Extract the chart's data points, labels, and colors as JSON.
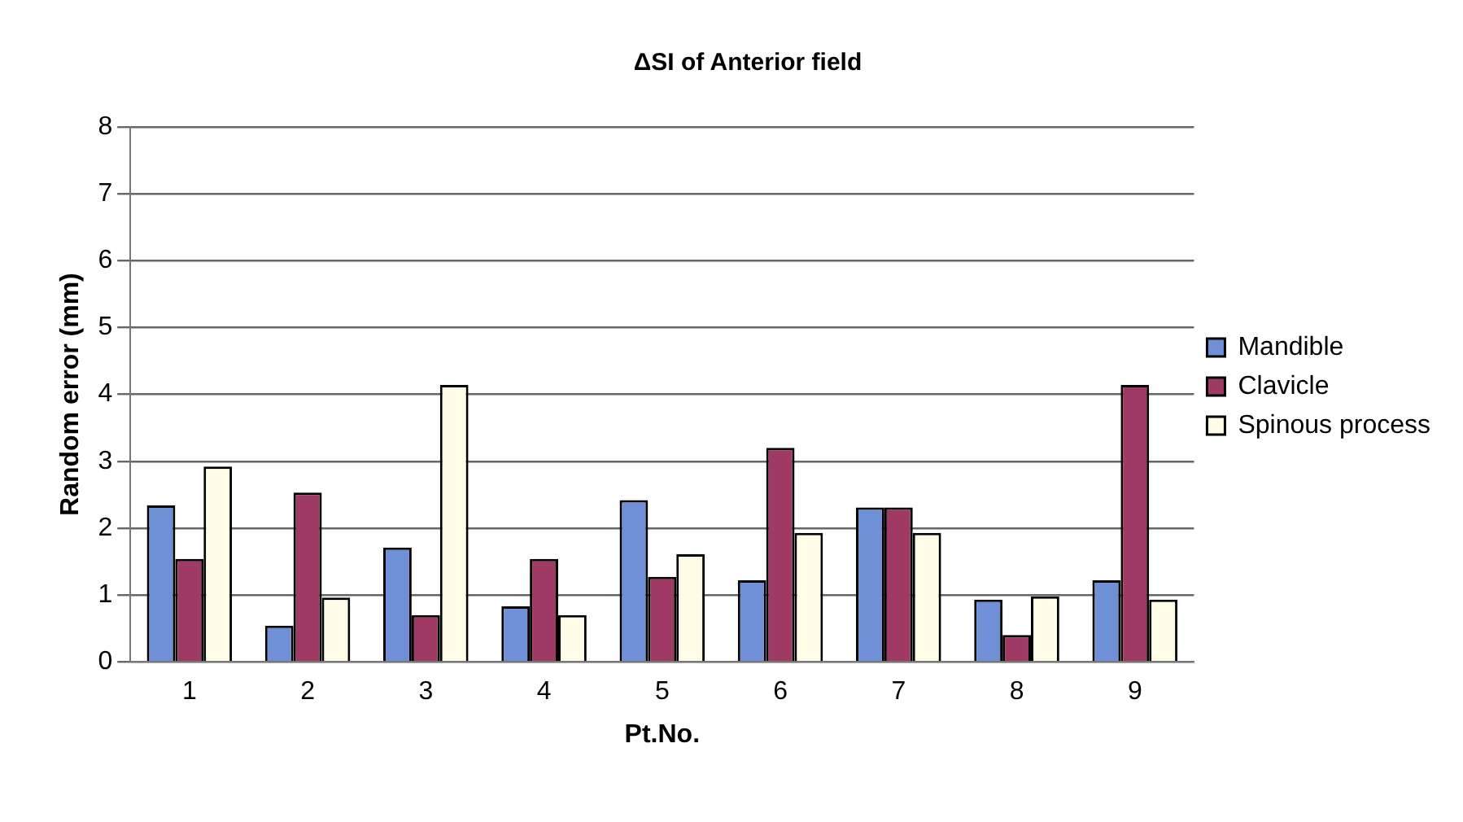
{
  "chart_data": {
    "type": "bar",
    "title": "ΔSI of Anterior field",
    "xlabel": "Pt.No.",
    "ylabel": "Random error (mm)",
    "categories": [
      "1",
      "2",
      "3",
      "4",
      "5",
      "6",
      "7",
      "8",
      "9"
    ],
    "series": [
      {
        "name": "Mandible",
        "color": "#6f8fd6",
        "values": [
          2.34,
          0.54,
          1.71,
          0.83,
          2.42,
          1.22,
          2.31,
          0.93,
          1.22
        ]
      },
      {
        "name": "Clavicle",
        "color": "#9e3a64",
        "values": [
          1.54,
          2.53,
          0.7,
          1.54,
          1.27,
          3.2,
          2.31,
          0.4,
          4.14
        ]
      },
      {
        "name": "Spinous process",
        "color": "#fffde6",
        "values": [
          2.92,
          0.96,
          4.14,
          0.7,
          1.61,
          1.93,
          1.93,
          0.98,
          0.93
        ]
      }
    ],
    "ylim": [
      0,
      8
    ],
    "yticks": [
      0,
      1,
      2,
      3,
      4,
      5,
      6,
      7,
      8
    ],
    "grid": "y",
    "legend": "right"
  }
}
